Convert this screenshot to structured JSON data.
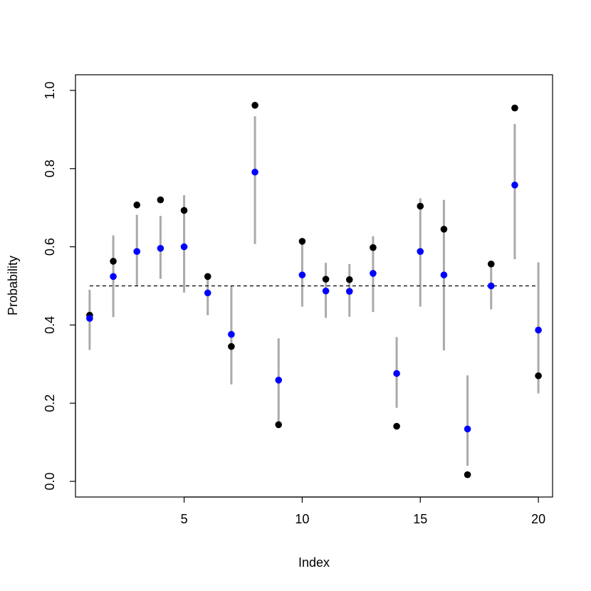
{
  "chart_data": {
    "type": "scatter",
    "xlabel": "Index",
    "ylabel": "Probability",
    "xlim": [
      0.4,
      20.6
    ],
    "ylim": [
      -0.04,
      1.04
    ],
    "x_ticks": [
      5,
      10,
      15,
      20
    ],
    "x_tick_labels": [
      "5",
      "10",
      "15",
      "20"
    ],
    "y_ticks": [
      0.0,
      0.2,
      0.4,
      0.6,
      0.8,
      1.0
    ],
    "y_tick_labels": [
      "0.0",
      "0.2",
      "0.4",
      "0.6",
      "0.8",
      "1.0"
    ],
    "grid": false,
    "reference_line": {
      "y": 0.5,
      "x_from": 1,
      "x_to": 20,
      "style": "dashed",
      "color": "#000000"
    },
    "x": [
      1,
      2,
      3,
      4,
      5,
      6,
      7,
      8,
      9,
      10,
      11,
      12,
      13,
      14,
      15,
      16,
      17,
      18,
      19,
      20
    ],
    "intervals": {
      "color": "#aaaaaa",
      "lower": [
        0.336,
        0.42,
        0.5,
        0.518,
        0.483,
        0.425,
        0.248,
        0.607,
        0.145,
        0.447,
        0.418,
        0.421,
        0.433,
        0.188,
        0.447,
        0.335,
        0.04,
        0.44,
        0.568,
        0.225
      ],
      "upper": [
        0.49,
        0.629,
        0.682,
        0.679,
        0.732,
        0.531,
        0.5,
        0.934,
        0.366,
        0.611,
        0.559,
        0.556,
        0.627,
        0.369,
        0.724,
        0.72,
        0.271,
        0.561,
        0.914,
        0.56
      ]
    },
    "series": [
      {
        "color": "#000000",
        "values": [
          0.425,
          0.563,
          0.707,
          0.72,
          0.693,
          0.524,
          0.345,
          0.962,
          0.145,
          0.614,
          0.517,
          0.516,
          0.598,
          0.141,
          0.704,
          0.645,
          0.017,
          0.556,
          0.955,
          0.27
        ]
      },
      {
        "color": "#0000ff",
        "values": [
          0.417,
          0.524,
          0.588,
          0.596,
          0.6,
          0.482,
          0.376,
          0.791,
          0.259,
          0.528,
          0.487,
          0.486,
          0.532,
          0.276,
          0.588,
          0.528,
          0.134,
          0.5,
          0.758,
          0.387
        ]
      }
    ]
  }
}
